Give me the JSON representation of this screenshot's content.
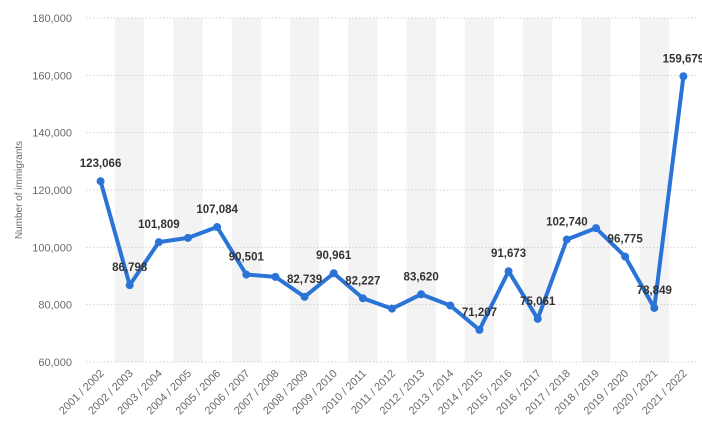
{
  "chart_data": {
    "type": "line",
    "title": "",
    "xlabel": "",
    "ylabel": "Number of immigrants",
    "ylim": [
      60000,
      180000
    ],
    "yticks": [
      60000,
      80000,
      100000,
      120000,
      140000,
      160000,
      180000
    ],
    "ytick_labels": [
      "60,000",
      "80,000",
      "100,000",
      "120,000",
      "140,000",
      "160,000",
      "180,000"
    ],
    "grid": true,
    "legend": "none",
    "categories": [
      "2001 / 2002",
      "2002 / 2003",
      "2003 / 2004",
      "2004 / 2005",
      "2005 / 2006",
      "2006 / 2007",
      "2007 / 2008",
      "2008 / 2009",
      "2009 / 2010",
      "2010 / 2011",
      "2011 / 2012",
      "2012 / 2013",
      "2013 / 2014",
      "2014 / 2015",
      "2015 / 2016",
      "2016 / 2017",
      "2017 / 2018",
      "2018 / 2019",
      "2019 / 2020",
      "2020 / 2021",
      "2021 / 2022"
    ],
    "series": [
      {
        "values": [
          123066,
          86798,
          101809,
          103300,
          107084,
          90501,
          89700,
          82739,
          90961,
          82227,
          78600,
          83620,
          79700,
          71207,
          91673,
          75061,
          102740,
          106700,
          96775,
          78849,
          159679
        ],
        "labels": [
          "123,066",
          "86,798",
          "101,809",
          "",
          "107,084",
          "90,501",
          "",
          "82,739",
          "90,961",
          "82,227",
          "",
          "83,620",
          "",
          "71,207",
          "91,673",
          "75,061",
          "102,740",
          "",
          "96,775",
          "78,849",
          "159,679"
        ],
        "color": "#2a74d8"
      }
    ]
  }
}
